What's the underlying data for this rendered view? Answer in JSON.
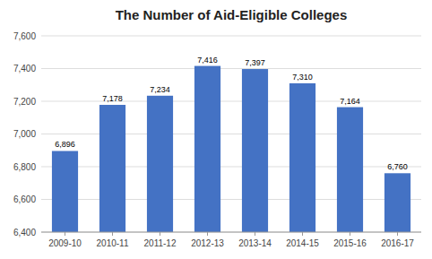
{
  "chart_data": {
    "type": "bar",
    "title": "The Number of Aid-Eligible Colleges",
    "categories": [
      "2009-10",
      "2010-11",
      "2011-12",
      "2012-13",
      "2013-14",
      "2014-15",
      "2015-16",
      "2016-17"
    ],
    "values": [
      6896,
      7178,
      7234,
      7416,
      7397,
      7310,
      7164,
      6760
    ],
    "value_labels": [
      "6,896",
      "7,178",
      "7,234",
      "7,416",
      "7,397",
      "7,310",
      "7,164",
      "6,760"
    ],
    "data_labels": true,
    "color": "#4472C4",
    "ylim": [
      6400,
      7600
    ],
    "yticks": [
      {
        "value": 6400,
        "label": "6,400"
      },
      {
        "value": 6600,
        "label": "6,600"
      },
      {
        "value": 6800,
        "label": "6,800"
      },
      {
        "value": 7000,
        "label": "7,000"
      },
      {
        "value": 7200,
        "label": "7,200"
      },
      {
        "value": 7400,
        "label": "7,400"
      },
      {
        "value": 7600,
        "label": "7,600"
      }
    ],
    "grid": true
  }
}
